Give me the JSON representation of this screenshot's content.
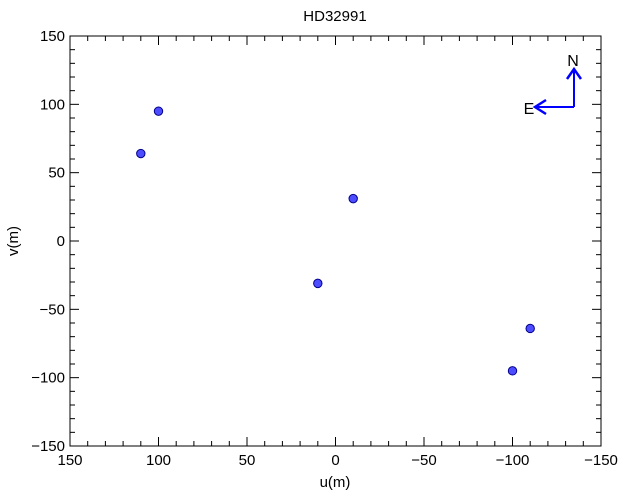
{
  "chart_data": {
    "type": "scatter",
    "title": "HD32991",
    "xlabel": "u(m)",
    "ylabel": "v(m)",
    "xlim": [
      150,
      -150
    ],
    "ylim": [
      -150,
      150
    ],
    "x_ticks_major": [
      150,
      100,
      50,
      0,
      -50,
      -100,
      -150
    ],
    "y_ticks_major": [
      -150,
      -100,
      -50,
      0,
      50,
      100,
      150
    ],
    "x_tick_labels": [
      "150",
      "100",
      "50",
      "0",
      "−50",
      "−100",
      "−150"
    ],
    "y_tick_labels": [
      "−150",
      "−100",
      "−50",
      "0",
      "50",
      "100",
      "150"
    ],
    "minor_tick_step": 10,
    "grid": false,
    "legend": "none",
    "points": [
      {
        "x": 100,
        "y": 95
      },
      {
        "x": 110,
        "y": 64
      },
      {
        "x": -10,
        "y": 31
      },
      {
        "x": 10,
        "y": -31
      },
      {
        "x": -110,
        "y": -64
      },
      {
        "x": -100,
        "y": -95
      }
    ],
    "marker": {
      "shape": "circle",
      "fill": "#4d4dff",
      "stroke": "#00008b"
    },
    "compass": {
      "north_label": "N",
      "east_label": "E",
      "position": "top-right",
      "color": "#0000ff"
    }
  }
}
